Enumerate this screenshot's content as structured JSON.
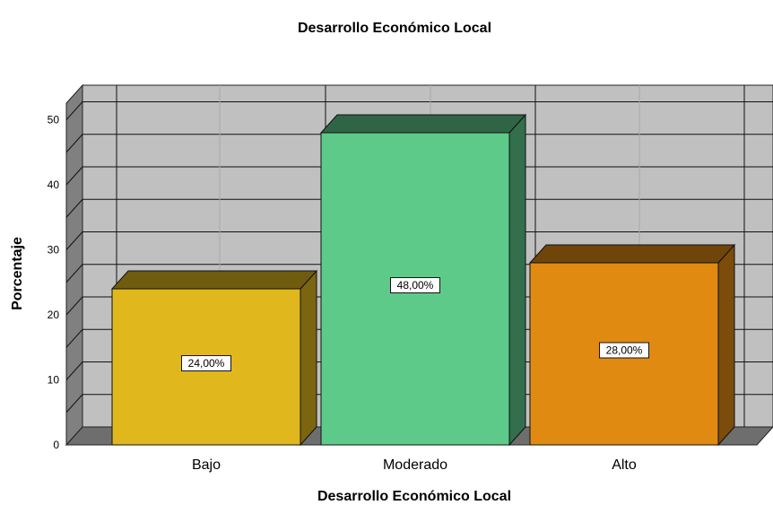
{
  "chart_data": {
    "type": "bar",
    "title": "Desarrollo Económico Local",
    "xlabel": "Desarrollo Económico Local",
    "ylabel": "Porcentaje",
    "categories": [
      "Bajo",
      "Moderado",
      "Alto"
    ],
    "values": [
      24,
      48,
      28
    ],
    "data_labels": [
      "24,00%",
      "48,00%",
      "28,00%"
    ],
    "colors": [
      "#E0B71C",
      "#5DCA8A",
      "#E08A12"
    ],
    "ylim": [
      0,
      50
    ],
    "yticks": [
      "0",
      "10",
      "20",
      "30",
      "40",
      "50"
    ],
    "grid": true,
    "style": "3d"
  }
}
